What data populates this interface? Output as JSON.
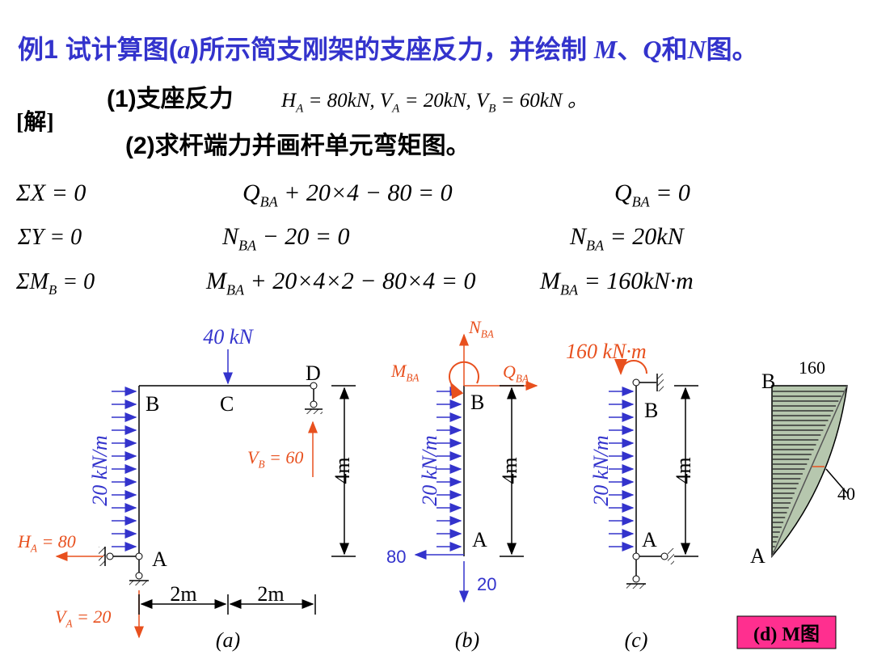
{
  "title": [
    "例1 试计算图(",
    "a",
    ")所示简支刚架的支座反力，并绘制 ",
    "M",
    "、",
    "Q",
    "和",
    "N",
    "图。"
  ],
  "solution": {
    "label": "[解]",
    "step1": "(1)支座反力",
    "reactions": [
      "H",
      "A",
      " = 80kN,  V",
      "A",
      " = 20kN,    V",
      "B",
      " = 60kN 。"
    ],
    "step2": "(2)求杆端力并画杆单元弯矩图。"
  },
  "equations": [
    [
      [
        "ΣX = 0"
      ],
      [
        "Q",
        "BA",
        " + 20×4 − 80 = 0"
      ],
      [
        "Q",
        "BA",
        " = 0"
      ]
    ],
    [
      [
        "ΣY = 0"
      ],
      [
        "N",
        "BA",
        " − 20 = 0"
      ],
      [
        "N",
        "BA",
        " = 20kN"
      ]
    ],
    [
      [
        "ΣM",
        "B",
        " = 0"
      ],
      [
        "M",
        "BA",
        " + 20×4×2 − 80×4 = 0"
      ],
      [
        "M",
        "BA",
        " = 160kN·m"
      ]
    ]
  ],
  "figure_a": {
    "load": "40 kN",
    "D": "D",
    "B": "B",
    "C": "C",
    "distributed": "20 kN/m",
    "VB": [
      "V",
      "B",
      " = 60"
    ],
    "height": "4m",
    "HA": [
      "H",
      "A",
      " = 80"
    ],
    "A": "A",
    "span1": "2m",
    "span2": "2m",
    "VA": [
      "V",
      "A",
      " = 20"
    ],
    "caption": "(a)"
  },
  "figure_b": {
    "N": [
      "N",
      "BA"
    ],
    "M": [
      "M",
      "BA"
    ],
    "Q": [
      "Q",
      "BA"
    ],
    "B": "B",
    "distributed": "20 kN/m",
    "height": "4m",
    "A": "A",
    "horizontal": "80",
    "vertical": "20",
    "caption": "(b)"
  },
  "figure_c": {
    "moment": "160 kN·m",
    "B": "B",
    "distributed": "20 kN/m",
    "height": "4m",
    "A": "A",
    "caption": "(c)"
  },
  "figure_d": {
    "B": "B",
    "top": "160",
    "mid": "40",
    "A": "A",
    "caption": "(d) M图"
  }
}
